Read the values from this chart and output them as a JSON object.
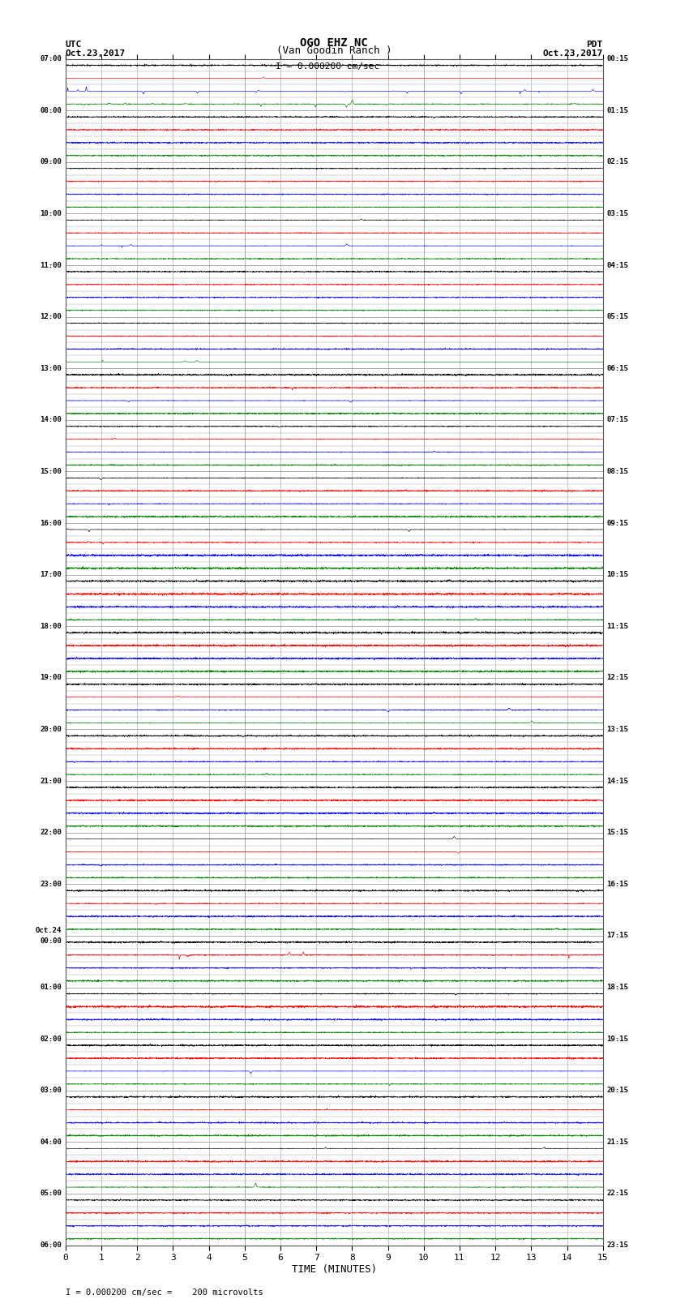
{
  "title_line1": "OGO EHZ NC",
  "title_line2": "(Van Goodin Ranch )",
  "title_line3": "I = 0.000200 cm/sec",
  "left_header_line1": "UTC",
  "left_header_line2": "Oct.23,2017",
  "right_header_line1": "PDT",
  "right_header_line2": "Oct.23,2017",
  "xlabel": "TIME (MINUTES)",
  "footer": "I = 0.000200 cm/sec =    200 microvolts",
  "xlim": [
    0,
    15
  ],
  "xticks": [
    0,
    1,
    2,
    3,
    4,
    5,
    6,
    7,
    8,
    9,
    10,
    11,
    12,
    13,
    14,
    15
  ],
  "figsize": [
    8.5,
    16.13
  ],
  "dpi": 100,
  "bg_color": "#ffffff",
  "grid_color": "#aaaaaa",
  "trace_colors": [
    "black",
    "red",
    "blue",
    "green"
  ],
  "num_rows": 92,
  "utc_labels_indices": [
    0,
    4,
    8,
    12,
    16,
    20,
    24,
    28,
    32,
    36,
    40,
    44,
    48,
    52,
    56,
    60,
    64,
    68,
    72,
    76,
    80,
    84,
    88
  ],
  "utc_labels_text": [
    "07:00",
    "08:00",
    "09:00",
    "10:00",
    "11:00",
    "12:00",
    "13:00",
    "14:00",
    "15:00",
    "16:00",
    "17:00",
    "18:00",
    "19:00",
    "20:00",
    "21:00",
    "22:00",
    "23:00",
    "Oct.24\n00:00",
    "01:00",
    "02:00",
    "03:00",
    "04:00",
    "05:00"
  ],
  "utc_last_label": "06:00",
  "utc_last_index": 92,
  "pdt_labels_indices": [
    0,
    4,
    8,
    12,
    16,
    20,
    24,
    28,
    32,
    36,
    40,
    44,
    48,
    52,
    56,
    60,
    64,
    68,
    72,
    76,
    80,
    84,
    88
  ],
  "pdt_labels_text": [
    "00:15",
    "01:15",
    "02:15",
    "03:15",
    "04:15",
    "05:15",
    "06:15",
    "07:15",
    "08:15",
    "09:15",
    "10:15",
    "11:15",
    "12:15",
    "13:15",
    "14:15",
    "15:15",
    "16:15",
    "17:15",
    "18:15",
    "19:15",
    "20:15",
    "21:15",
    "22:15"
  ],
  "pdt_last_label": "23:15",
  "pdt_last_index": 92
}
